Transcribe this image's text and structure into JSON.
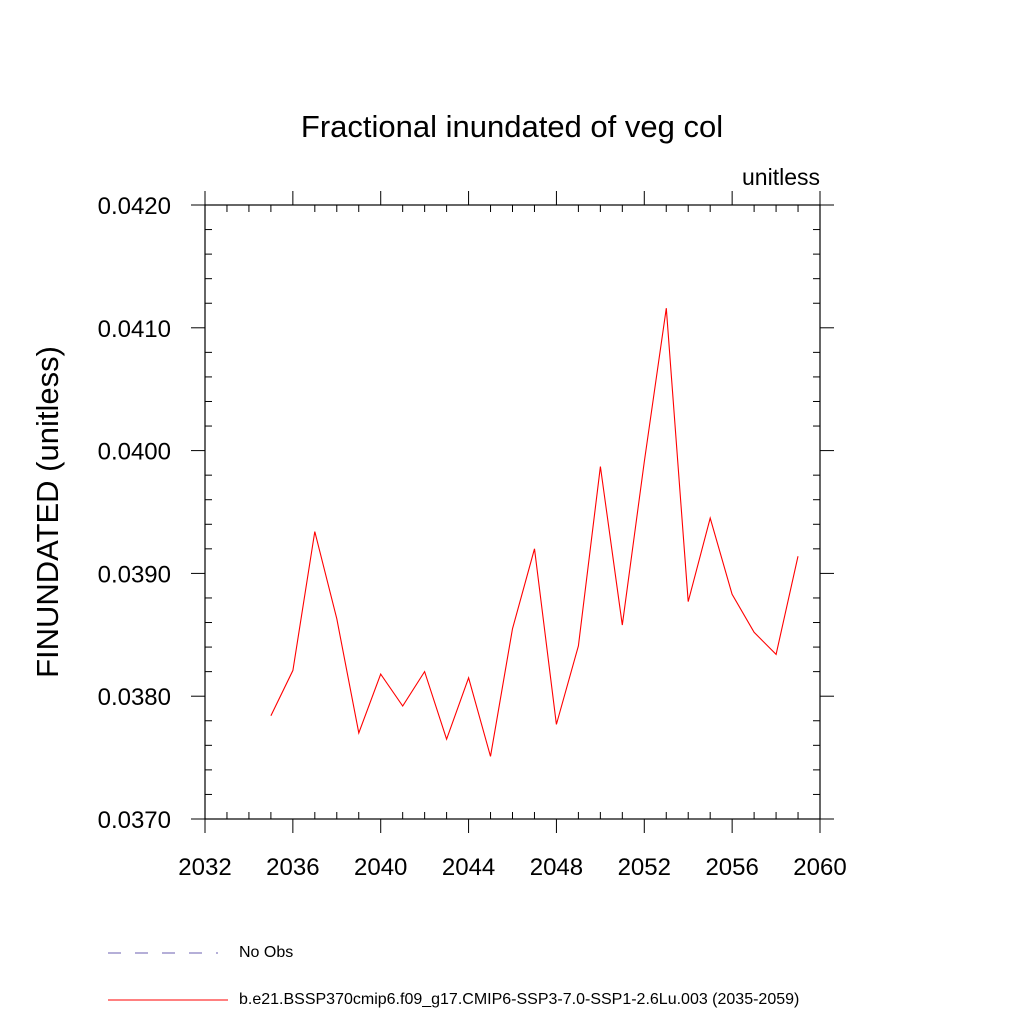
{
  "chart_data": {
    "type": "line",
    "title": "Fractional inundated of veg col",
    "units_label": "unitless",
    "ylabel": "FINUNDATED  (unitless)",
    "xlabel": "",
    "xlim": [
      2032,
      2060
    ],
    "ylim": [
      0.037,
      0.042
    ],
    "xticks": [
      2032,
      2036,
      2040,
      2044,
      2048,
      2052,
      2056,
      2060
    ],
    "yticks": [
      "0.0370",
      "0.0380",
      "0.0390",
      "0.0400",
      "0.0410",
      "0.0420"
    ],
    "grid": false,
    "series": [
      {
        "name": "b.e21.BSSP370cmip6.f09_g17.CMIP6-SSP3-7.0-SSP1-2.6Lu.003 (2035-2059)",
        "color": "#ff0000",
        "x": [
          2035,
          2036,
          2037,
          2038,
          2039,
          2040,
          2041,
          2042,
          2043,
          2044,
          2045,
          2046,
          2047,
          2048,
          2049,
          2050,
          2051,
          2052,
          2053,
          2054,
          2055,
          2056,
          2057,
          2058,
          2059
        ],
        "values": [
          0.03784,
          0.03821,
          0.03934,
          0.03863,
          0.0377,
          0.03818,
          0.03792,
          0.0382,
          0.03765,
          0.03815,
          0.03751,
          0.03855,
          0.0392,
          0.03777,
          0.03841,
          0.03987,
          0.03858,
          0.03991,
          0.04116,
          0.03877,
          0.03945,
          0.03883,
          0.03852,
          0.03834,
          0.03914
        ]
      }
    ]
  },
  "legend": {
    "items": [
      {
        "label": "No Obs",
        "color": "#6b5fb0",
        "style": "dashed"
      },
      {
        "label": "b.e21.BSSP370cmip6.f09_g17.CMIP6-SSP3-7.0-SSP1-2.6Lu.003 (2035-2059)",
        "color": "#ff0000",
        "style": "solid"
      }
    ]
  }
}
